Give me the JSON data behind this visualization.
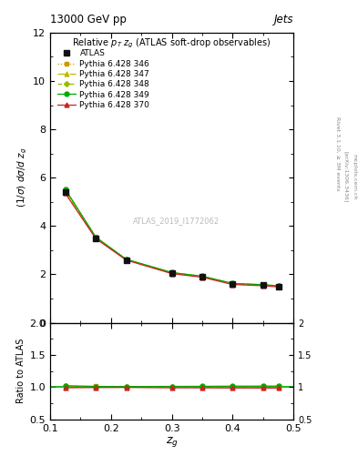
{
  "title": "13000 GeV pp",
  "title_right": "Jets",
  "plot_title": "Relative $p_T$ $z_g$ (ATLAS soft-drop observables)",
  "xlabel": "$z_g$",
  "ylabel_main": "$(1/\\sigma)$ $d\\sigma/d$ $z_g$",
  "ylabel_ratio": "Ratio to ATLAS",
  "watermark": "ATLAS_2019_I1772062",
  "series": [
    {
      "label": "ATLAS",
      "x": [
        0.125,
        0.175,
        0.225,
        0.3,
        0.35,
        0.4,
        0.45,
        0.475
      ],
      "y": [
        5.4,
        3.5,
        2.6,
        2.05,
        1.9,
        1.6,
        1.55,
        1.5
      ],
      "color": "#111111",
      "marker": "s",
      "linestyle": "none",
      "markersize": 4.5,
      "is_atlas": true
    },
    {
      "label": "Pythia 6.428 346",
      "x": [
        0.125,
        0.175,
        0.225,
        0.3,
        0.35,
        0.4,
        0.45,
        0.475
      ],
      "y": [
        5.5,
        3.55,
        2.62,
        2.07,
        1.92,
        1.62,
        1.57,
        1.52
      ],
      "color": "#cc9900",
      "marker": "s",
      "linestyle": ":",
      "markersize": 3.5,
      "is_atlas": false
    },
    {
      "label": "Pythia 6.428 347",
      "x": [
        0.125,
        0.175,
        0.225,
        0.3,
        0.35,
        0.4,
        0.45,
        0.475
      ],
      "y": [
        5.45,
        3.52,
        2.61,
        2.06,
        1.91,
        1.61,
        1.56,
        1.51
      ],
      "color": "#bbbb00",
      "marker": "^",
      "linestyle": "-.",
      "markersize": 3.5,
      "is_atlas": false
    },
    {
      "label": "Pythia 6.428 348",
      "x": [
        0.125,
        0.175,
        0.225,
        0.3,
        0.35,
        0.4,
        0.45,
        0.475
      ],
      "y": [
        5.47,
        3.52,
        2.615,
        2.065,
        1.915,
        1.615,
        1.565,
        1.515
      ],
      "color": "#99bb00",
      "marker": "D",
      "linestyle": "--",
      "markersize": 3.0,
      "is_atlas": false
    },
    {
      "label": "Pythia 6.428 349",
      "x": [
        0.125,
        0.175,
        0.225,
        0.3,
        0.35,
        0.4,
        0.45,
        0.475
      ],
      "y": [
        5.52,
        3.54,
        2.625,
        2.075,
        1.925,
        1.625,
        1.575,
        1.525
      ],
      "color": "#00aa00",
      "marker": "o",
      "linestyle": "-",
      "markersize": 3.5,
      "is_atlas": false
    },
    {
      "label": "Pythia 6.428 370",
      "x": [
        0.125,
        0.175,
        0.225,
        0.3,
        0.35,
        0.4,
        0.45,
        0.475
      ],
      "y": [
        5.35,
        3.48,
        2.59,
        2.03,
        1.88,
        1.58,
        1.53,
        1.48
      ],
      "color": "#cc2222",
      "marker": "^",
      "linestyle": "-",
      "markersize": 3.5,
      "is_atlas": false
    }
  ],
  "xlim": [
    0.1,
    0.5
  ],
  "ylim_main": [
    0,
    12
  ],
  "ylim_ratio": [
    0.5,
    2.0
  ],
  "yticks_main": [
    0,
    2,
    4,
    6,
    8,
    10,
    12
  ],
  "yticks_ratio": [
    0.5,
    1.0,
    1.5,
    2.0
  ],
  "xticks": [
    0.1,
    0.2,
    0.3,
    0.4,
    0.5
  ],
  "bg_color": "#ffffff"
}
